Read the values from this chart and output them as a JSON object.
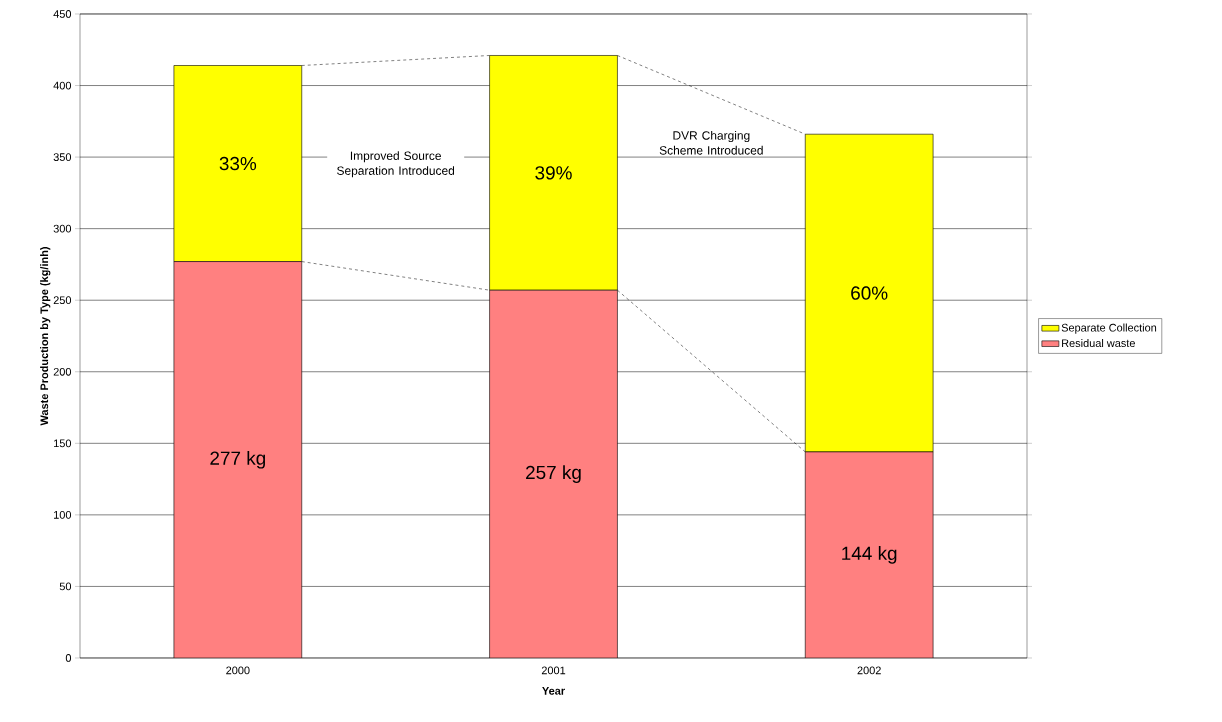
{
  "chart_data": {
    "type": "bar",
    "stacked": true,
    "xlabel": "Year",
    "ylabel": "Waste Production by Type (kg/inh)",
    "categories": [
      "2000",
      "2001",
      "2002"
    ],
    "series": [
      {
        "name": "Residual waste",
        "color": "#ff8080",
        "values": [
          277,
          257,
          144
        ],
        "value_labels": [
          "277 kg",
          "257 kg",
          "144 kg"
        ]
      },
      {
        "name": "Separate Collection",
        "color": "#ffff00",
        "values": [
          137,
          164,
          222
        ]
      }
    ],
    "ylim": [
      0,
      450
    ],
    "yticks": [
      0,
      50,
      100,
      150,
      200,
      250,
      300,
      350,
      400,
      450
    ],
    "grid": "y",
    "legend": "right",
    "annotations": [
      "Improved Source Separation Introduced",
      "DVR Charging Scheme Introduced",
      "33%",
      "39%",
      "60%"
    ]
  }
}
